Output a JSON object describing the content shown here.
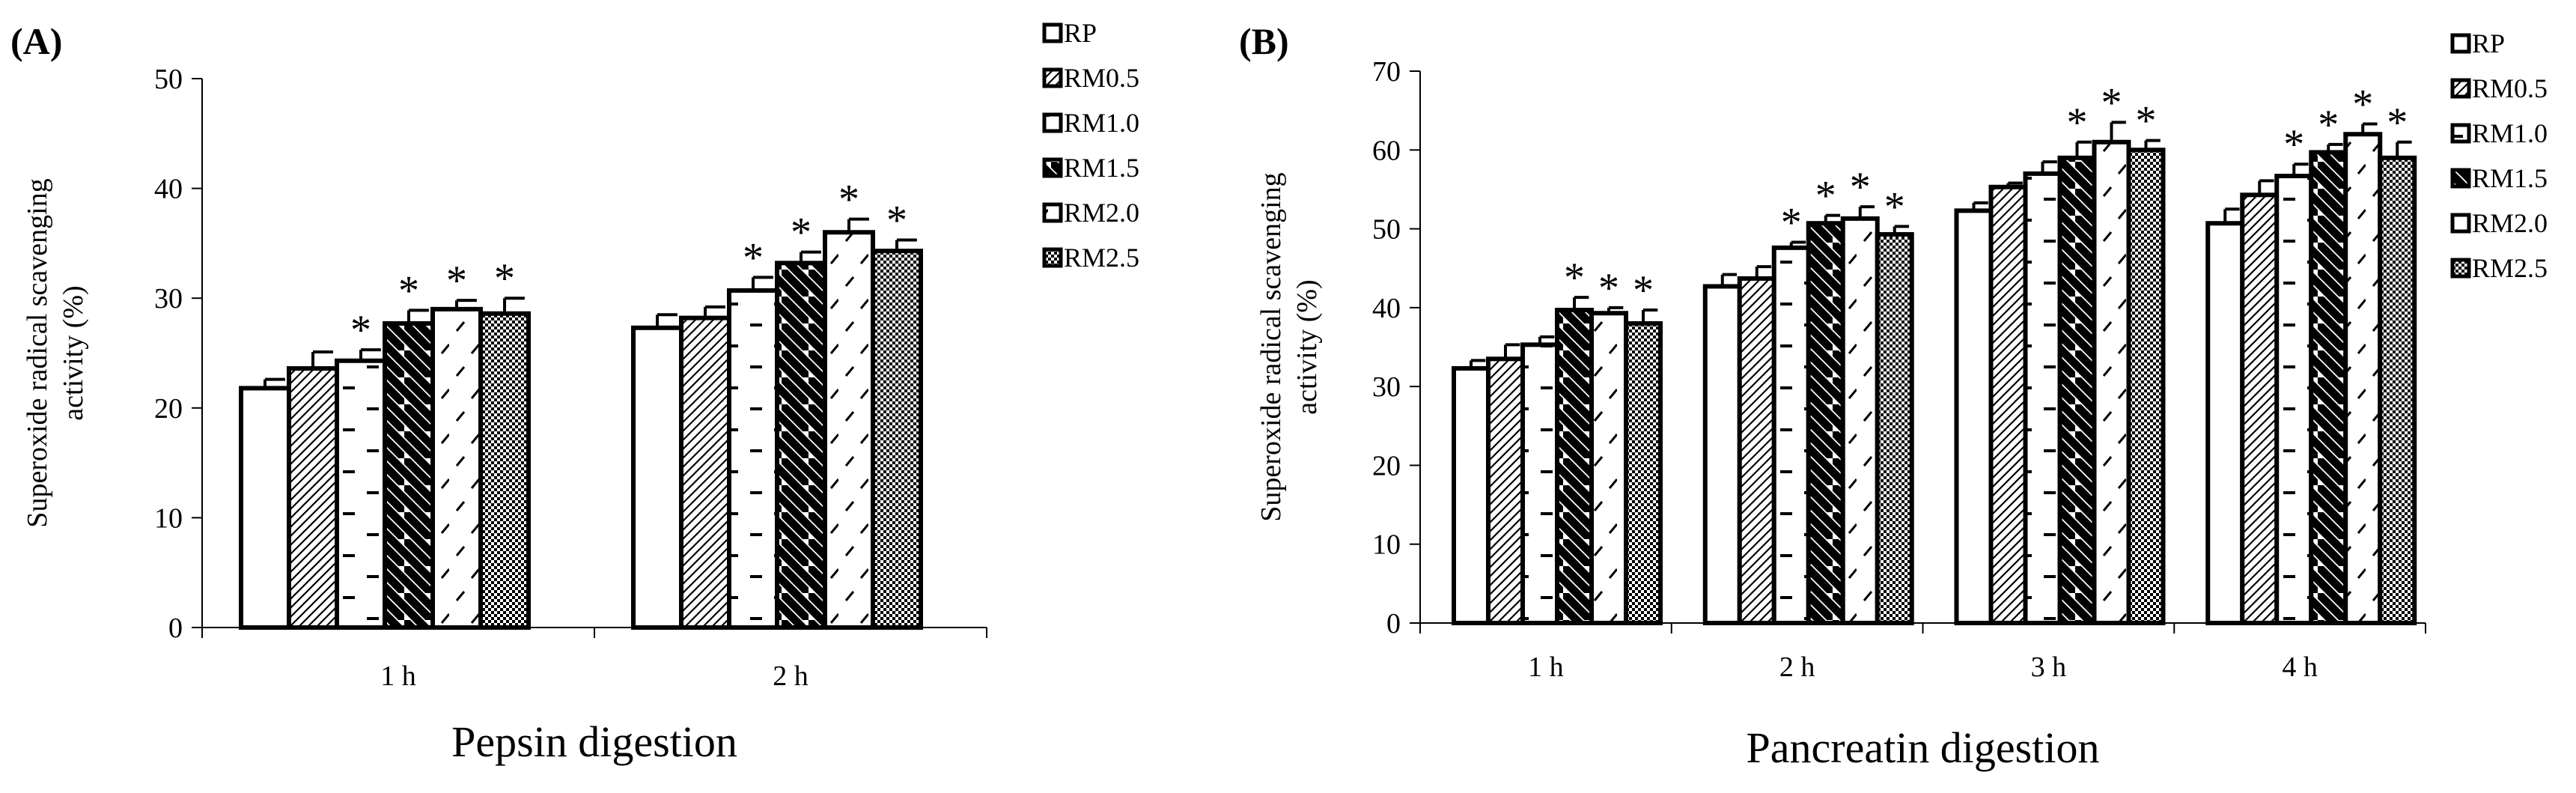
{
  "chart_data": [
    {
      "panel_label": "(A)",
      "type": "bar",
      "title": "",
      "xlabel": "Pepsin digestion",
      "ylabel_lines": [
        "Superoxide radical scavenging",
        "activity (%)"
      ],
      "ylim": [
        0,
        50
      ],
      "yticks": [
        0,
        10,
        20,
        30,
        40,
        50
      ],
      "ytick_labels": [
        "0",
        "10",
        "20",
        "30",
        "40",
        "50"
      ],
      "categories": [
        "1 h",
        "2 h"
      ],
      "legend": [
        "RP",
        "RM0.5",
        "RM1.0",
        "RM1.5",
        "RM2.0",
        "RM2.5"
      ],
      "legend_position": "top-right",
      "series": [
        {
          "name": "RP",
          "values": [
            21.8,
            27.3
          ],
          "errors": [
            0.8,
            1.2
          ],
          "significant": [
            false,
            false
          ]
        },
        {
          "name": "RM0.5",
          "values": [
            23.6,
            28.2
          ],
          "errors": [
            1.5,
            1.0
          ],
          "significant": [
            false,
            false
          ]
        },
        {
          "name": "RM1.0",
          "values": [
            24.3,
            30.7
          ],
          "errors": [
            1.0,
            1.2
          ],
          "significant": [
            true,
            true
          ]
        },
        {
          "name": "RM1.5",
          "values": [
            27.7,
            33.2
          ],
          "errors": [
            1.2,
            1.0
          ],
          "significant": [
            true,
            true
          ]
        },
        {
          "name": "RM2.0",
          "values": [
            29.0,
            36.0
          ],
          "errors": [
            0.8,
            1.2
          ],
          "significant": [
            true,
            true
          ]
        },
        {
          "name": "RM2.5",
          "values": [
            28.6,
            34.3
          ],
          "errors": [
            1.4,
            1.0
          ],
          "significant": [
            true,
            true
          ]
        }
      ],
      "significance_marker": "*"
    },
    {
      "panel_label": "(B)",
      "type": "bar",
      "title": "",
      "xlabel": "Pancreatin digestion",
      "ylabel_lines": [
        "Superoxide radical scavenging",
        "activity (%)"
      ],
      "ylim": [
        0,
        70
      ],
      "yticks": [
        0,
        10,
        20,
        30,
        40,
        50,
        60,
        70
      ],
      "ytick_labels": [
        "0",
        "10",
        "20",
        "30",
        "40",
        "50",
        "60",
        "70"
      ],
      "categories": [
        "1 h",
        "2 h",
        "3 h",
        "4 h"
      ],
      "legend": [
        "RP",
        "RM0.5",
        "RM1.0",
        "RM1.5",
        "RM2.0",
        "RM2.5"
      ],
      "legend_position": "top-right",
      "series": [
        {
          "name": "RP",
          "values": [
            32.3,
            42.7,
            52.3,
            50.7
          ],
          "errors": [
            1.0,
            1.5,
            1.0,
            1.8
          ],
          "significant": [
            false,
            false,
            false,
            false
          ]
        },
        {
          "name": "RM0.5",
          "values": [
            33.5,
            43.7,
            55.3,
            54.3
          ],
          "errors": [
            1.8,
            1.5,
            0.5,
            1.8
          ],
          "significant": [
            false,
            false,
            false,
            false
          ]
        },
        {
          "name": "RM1.0",
          "values": [
            35.3,
            47.6,
            57.0,
            56.7
          ],
          "errors": [
            1.0,
            0.7,
            1.5,
            1.5
          ],
          "significant": [
            false,
            true,
            false,
            true
          ]
        },
        {
          "name": "RM1.5",
          "values": [
            39.7,
            50.7,
            59.0,
            59.7
          ],
          "errors": [
            1.6,
            1.0,
            2.0,
            1.0
          ],
          "significant": [
            true,
            true,
            true,
            true
          ]
        },
        {
          "name": "RM2.0",
          "values": [
            39.3,
            51.3,
            61.0,
            62.0
          ],
          "errors": [
            0.7,
            1.5,
            2.5,
            1.3
          ],
          "significant": [
            true,
            true,
            true,
            true
          ]
        },
        {
          "name": "RM2.5",
          "values": [
            38.0,
            49.3,
            60.0,
            59.0
          ],
          "errors": [
            1.7,
            1.0,
            1.2,
            2.0
          ],
          "significant": [
            true,
            true,
            true,
            true
          ]
        }
      ],
      "significance_marker": "*"
    }
  ]
}
